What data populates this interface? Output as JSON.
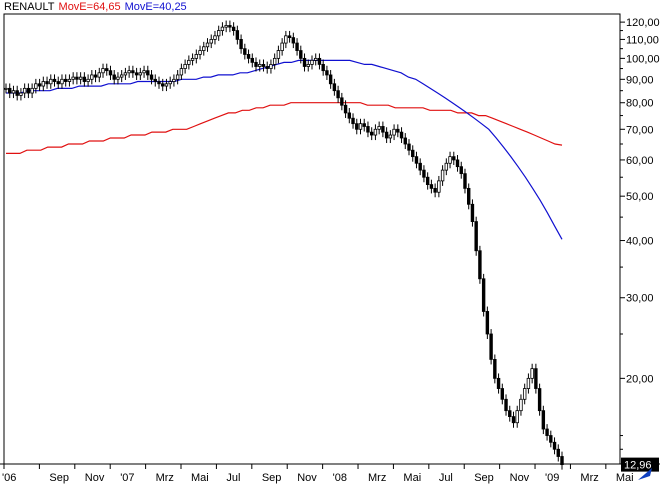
{
  "chart_data": {
    "type": "line",
    "legend": [
      {
        "name": "RENAULT",
        "color": "#000000"
      },
      {
        "name": "MovE=64,65",
        "color": "#e01010"
      },
      {
        "name": "MovE=40,25",
        "color": "#1010d0"
      }
    ],
    "y_scale": "log",
    "ylim": [
      13,
      125
    ],
    "y_ticks": [
      {
        "value": 120,
        "label": "120,00"
      },
      {
        "value": 110,
        "label": "110,00"
      },
      {
        "value": 100,
        "label": "100,00"
      },
      {
        "value": 90,
        "label": "90,00"
      },
      {
        "value": 80,
        "label": "80,00"
      },
      {
        "value": 70,
        "label": "70,00"
      },
      {
        "value": 60,
        "label": "60,00"
      },
      {
        "value": 50,
        "label": "50,00"
      },
      {
        "value": 40,
        "label": "40,00"
      },
      {
        "value": 30,
        "label": "30,00"
      },
      {
        "value": 20,
        "label": "20,00"
      }
    ],
    "x_ticks": [
      "'06",
      "Sep",
      "Nov",
      "'07",
      "Mrz",
      "Mai",
      "Jul",
      "Sep",
      "Nov",
      "'08",
      "Mrz",
      "Mai",
      "Jul",
      "Sep",
      "Nov",
      "'09",
      "Mrz",
      "Mai"
    ],
    "last_value": {
      "value": 12.96,
      "label": "12,96",
      "color": "#000000"
    },
    "series": [
      {
        "name": "RENAULT",
        "color": "#000000",
        "style": "candles",
        "values": [
          86,
          84,
          85,
          83,
          84,
          86,
          84,
          86,
          88,
          87,
          89,
          88,
          90,
          89,
          88,
          90,
          89,
          90,
          91,
          90,
          91,
          89,
          90,
          92,
          91,
          93,
          95,
          94,
          92,
          90,
          91,
          92,
          93,
          94,
          93,
          92,
          93,
          94,
          92,
          90,
          89,
          88,
          87,
          88,
          89,
          90,
          92,
          95,
          97,
          99,
          100,
          102,
          104,
          106,
          108,
          110,
          112,
          115,
          117,
          118,
          117,
          115,
          110,
          105,
          102,
          100,
          98,
          96,
          97,
          96,
          95,
          97,
          100,
          104,
          108,
          112,
          111,
          108,
          104,
          100,
          96,
          97,
          99,
          100,
          97,
          94,
          92,
          88,
          85,
          82,
          79,
          76,
          74,
          72,
          70,
          72,
          71,
          69,
          68,
          70,
          71,
          69,
          67,
          68,
          70,
          69,
          67,
          65,
          63,
          61,
          59,
          57,
          55,
          53,
          52,
          51,
          54,
          57,
          59,
          61,
          60,
          58,
          56,
          52,
          48,
          44,
          38,
          33,
          28,
          25,
          22,
          20,
          19,
          18,
          17,
          16.5,
          16,
          17,
          18,
          19,
          20,
          21,
          19,
          17,
          15.5,
          15,
          14.5,
          14,
          13.5,
          12.96
        ]
      },
      {
        "name": "MovE=40,25",
        "color": "#1010d0",
        "style": "line",
        "values": [
          84,
          84,
          84,
          85,
          85,
          85,
          85,
          86,
          86,
          86,
          87,
          87,
          87,
          87,
          88,
          88,
          88,
          88,
          89,
          89,
          89,
          89,
          89,
          89,
          90,
          90,
          90,
          91,
          91,
          92,
          92,
          92,
          93,
          93,
          94,
          95,
          96,
          97,
          98,
          98,
          99,
          99,
          99,
          99,
          99,
          99,
          99,
          99,
          98,
          97,
          97,
          96,
          95,
          94,
          93,
          91,
          90,
          88,
          86,
          84,
          82,
          80,
          78,
          76,
          74,
          72,
          70,
          67,
          64,
          61,
          58,
          55,
          52,
          49,
          46,
          43,
          40.25
        ]
      },
      {
        "name": "MovE=64,65",
        "color": "#e01010",
        "style": "line",
        "values": [
          62,
          62,
          62,
          63,
          63,
          63,
          64,
          64,
          64,
          65,
          65,
          65,
          66,
          66,
          66,
          67,
          67,
          67,
          68,
          68,
          68,
          69,
          69,
          69,
          70,
          70,
          70,
          71,
          72,
          73,
          74,
          75,
          76,
          76,
          77,
          77,
          78,
          78,
          79,
          79,
          79,
          80,
          80,
          80,
          80,
          80,
          80,
          80,
          80,
          80,
          80,
          80,
          79,
          79,
          79,
          79,
          78,
          78,
          78,
          78,
          78,
          77,
          77,
          77,
          77,
          76,
          76,
          76,
          75,
          75,
          74,
          73,
          72,
          71,
          70,
          69,
          68,
          67,
          66,
          65,
          64.65
        ]
      }
    ]
  }
}
